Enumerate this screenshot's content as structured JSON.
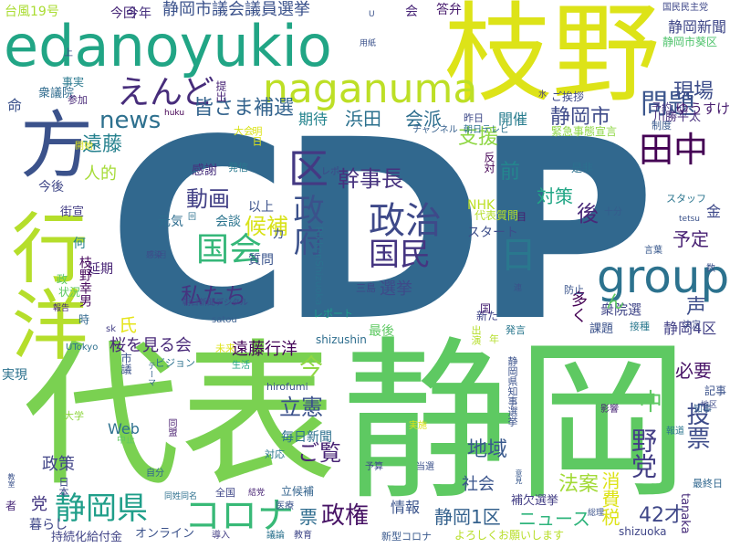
{
  "words": [
    {
      "text": "CDP",
      "color": "#31688e"
    },
    {
      "text": "静岡",
      "color": "#5ec962"
    },
    {
      "text": "代表",
      "color": "#7ad151"
    },
    {
      "text": "枝野",
      "color": "#dde318"
    },
    {
      "text": "edanoyukio",
      "color": "#21a585"
    },
    {
      "text": "行洋",
      "color": "#b5de2b"
    },
    {
      "text": "方",
      "color": "#3b528b"
    },
    {
      "text": "naganuma",
      "color": "#bddf26"
    },
    {
      "text": "group",
      "color": "#2c728e"
    },
    {
      "text": "政治",
      "color": "#3e4989"
    },
    {
      "text": "国会",
      "color": "#35b779"
    },
    {
      "text": "コロナ",
      "color": "#38b977"
    },
    {
      "text": "区",
      "color": "#443983"
    },
    {
      "text": "静岡県",
      "color": "#1f9e89"
    },
    {
      "text": "えんど",
      "color": "#472d7b"
    },
    {
      "text": "田中",
      "color": "#440154"
    },
    {
      "text": "問題",
      "color": "#3a548c"
    },
    {
      "text": "政府",
      "color": "#3b518b"
    },
    {
      "text": "国民",
      "color": "#453581"
    },
    {
      "text": "日",
      "color": "#2a788e"
    },
    {
      "text": "news",
      "color": "#2d708e"
    },
    {
      "text": "現場",
      "color": "#3d4d8a"
    },
    {
      "text": "皆さま補選",
      "color": "#33638d"
    },
    {
      "text": "ゆうすけ",
      "color": "#481d6f"
    },
    {
      "text": "幹事長",
      "color": "#46327e"
    },
    {
      "text": "遠藤",
      "color": "#26818e"
    },
    {
      "text": "動画",
      "color": "#424086"
    },
    {
      "text": "静岡市",
      "color": "#3e4a89"
    },
    {
      "text": "支援",
      "color": "#8fd744"
    },
    {
      "text": "会派",
      "color": "#2e6e8e"
    },
    {
      "text": "浜田",
      "color": "#2c718e"
    },
    {
      "text": "期待",
      "color": "#25848e"
    },
    {
      "text": "開催",
      "color": "#287c8e"
    },
    {
      "text": "前",
      "color": "#24868e"
    },
    {
      "text": "対策",
      "color": "#21a685"
    },
    {
      "text": "川勝平太",
      "color": "#472e7c"
    },
    {
      "text": "静岡新聞",
      "color": "#3f4788"
    },
    {
      "text": "静岡市議会議員選挙",
      "color": "#3b528b"
    },
    {
      "text": "今回",
      "color": "#482878"
    },
    {
      "text": "今年",
      "color": "#46307e"
    },
    {
      "text": "台風19号",
      "color": "#aadc32"
    },
    {
      "text": "会",
      "color": "#482677"
    },
    {
      "text": "答弁",
      "color": "#481c6e"
    },
    {
      "text": "静岡市葵区",
      "color": "#4ec36b"
    },
    {
      "text": "国民民主党",
      "color": "#3f4889"
    },
    {
      "text": "候補",
      "color": "#d8e219"
    },
    {
      "text": "私たち",
      "color": "#46337f"
    },
    {
      "text": "予定",
      "color": "#482173"
    },
    {
      "text": "選挙",
      "color": "#3e4a89"
    },
    {
      "text": "人的",
      "color": "#a5db36"
    },
    {
      "text": "感謝",
      "color": "#472f7d"
    },
    {
      "text": "以上",
      "color": "#3b528b"
    },
    {
      "text": "元気",
      "color": "#2e6d8e"
    },
    {
      "text": "会談",
      "color": "#2b748e"
    },
    {
      "text": "質問",
      "color": "#3a548c"
    },
    {
      "text": "後",
      "color": "#482878"
    },
    {
      "text": "多く",
      "color": "#440154"
    },
    {
      "text": "静岡4区",
      "color": "#424086"
    },
    {
      "text": "衆院選",
      "color": "#404688"
    },
    {
      "text": "課題",
      "color": "#3b528b"
    },
    {
      "text": "声",
      "color": "#3d4e8a"
    },
    {
      "text": "必要",
      "color": "#481467"
    },
    {
      "text": "今",
      "color": "#90d743"
    },
    {
      "text": "桜を見る会",
      "color": "#482878"
    },
    {
      "text": "遠藤行洋",
      "color": "#450559"
    },
    {
      "text": "氏",
      "color": "#e5e419"
    },
    {
      "text": "立憲",
      "color": "#3b518b"
    },
    {
      "text": "ご覧",
      "color": "#482475"
    },
    {
      "text": "中",
      "color": "#5ec962"
    },
    {
      "text": "投票",
      "color": "#3e4c8a"
    },
    {
      "text": "野党",
      "color": "#433e85"
    },
    {
      "text": "毎日新聞",
      "color": "#2d708e"
    },
    {
      "text": "地域",
      "color": "#38588c"
    },
    {
      "text": "政策",
      "color": "#414487"
    },
    {
      "text": "静岡1区",
      "color": "#34618d"
    },
    {
      "text": "ニュース",
      "color": "#2fb47c"
    },
    {
      "text": "42才",
      "color": "#3f4788"
    },
    {
      "text": "法案",
      "color": "#a2da37"
    },
    {
      "text": "社会",
      "color": "#3a548c"
    },
    {
      "text": "党",
      "color": "#453882"
    },
    {
      "text": "政権",
      "color": "#471365"
    },
    {
      "text": "票",
      "color": "#2f6c8e"
    },
    {
      "text": "情報",
      "color": "#3a538b"
    },
    {
      "text": "補欠選挙",
      "color": "#433e85"
    },
    {
      "text": "消費税",
      "color": "#dde318"
    },
    {
      "text": "shizuoka",
      "color": "#404688"
    },
    {
      "text": "暮らし",
      "color": "#3f4788"
    },
    {
      "text": "持続化給付金",
      "color": "#414487"
    },
    {
      "text": "オンライン",
      "color": "#3b528b"
    },
    {
      "text": "新型コロナ",
      "color": "#38588c"
    },
    {
      "text": "よろしくお願いします",
      "color": "#b8de29"
    },
    {
      "text": "tanaka",
      "color": "#472c7a"
    },
    {
      "text": "最終日",
      "color": "#31678e"
    },
    {
      "text": "Web",
      "color": "#2d708e"
    },
    {
      "text": "NHK",
      "color": "#bddf26"
    },
    {
      "text": "スタート",
      "color": "#3d4e8a"
    },
    {
      "text": "shizushin",
      "color": "#2e6e8e"
    },
    {
      "text": "hirofumi",
      "color": "#3a538b"
    },
    {
      "text": "実現",
      "color": "#2c728e"
    },
    {
      "text": "延期",
      "color": "#482576"
    },
    {
      "text": "何",
      "color": "#26828e"
    },
    {
      "text": "枝野幸男",
      "color": "#46085c"
    },
    {
      "text": "衆議院",
      "color": "#2f6b8e"
    },
    {
      "text": "命",
      "color": "#3b528b"
    },
    {
      "text": "今後",
      "color": "#3f4788"
    },
    {
      "text": "街宣",
      "color": "#433d84"
    },
    {
      "text": "状況",
      "color": "#5ec962"
    },
    {
      "text": "事実",
      "color": "#2a788e"
    },
    {
      "text": "参加",
      "color": "#482878"
    },
    {
      "text": "提出",
      "color": "#482576"
    },
    {
      "text": "ご挨拶",
      "color": "#3e4989"
    },
    {
      "text": "予約",
      "color": "#46337f"
    },
    {
      "text": "制度",
      "color": "#38598c"
    },
    {
      "text": "緊急事態宣言",
      "color": "#8fd744"
    },
    {
      "text": "是非",
      "color": "#2c718e"
    },
    {
      "text": "スタッフ",
      "color": "#2b758e"
    },
    {
      "text": "十分",
      "color": "#365c8d"
    },
    {
      "text": "金",
      "color": "#3e4989"
    },
    {
      "text": "代表質問",
      "color": "#b5de2b"
    },
    {
      "text": "目",
      "color": "#481c6e"
    },
    {
      "text": "反対",
      "color": "#440154"
    },
    {
      "text": "チャンネル",
      "color": "#355f8d"
    },
    {
      "text": "朝日テレビ",
      "color": "#2c728e"
    },
    {
      "text": "大会",
      "color": "#d8e219"
    },
    {
      "text": "昨日",
      "color": "#3e4989"
    },
    {
      "text": "明日",
      "color": "#dde318"
    },
    {
      "text": "発信",
      "color": "#2a788e"
    },
    {
      "text": "RikkenShizuoka",
      "color": "#2c718e"
    },
    {
      "text": "三島",
      "color": "#3f4788"
    },
    {
      "text": "レポート",
      "color": "#1f9e89"
    },
    {
      "text": "新た",
      "color": "#404588"
    },
    {
      "text": "最後",
      "color": "#5ec962"
    },
    {
      "text": "出演",
      "color": "#b5de2b"
    },
    {
      "text": "発言",
      "color": "#2a778e"
    },
    {
      "text": "国",
      "color": "#482475"
    },
    {
      "text": "防止",
      "color": "#3a548c"
    },
    {
      "text": "決定",
      "color": "#3e4c8a"
    },
    {
      "text": "接種",
      "color": "#2a788e"
    },
    {
      "text": "言葉",
      "color": "#38588c"
    },
    {
      "text": "大学",
      "color": "#90d743"
    },
    {
      "text": "中止",
      "color": "#5ec962"
    },
    {
      "text": "同盟",
      "color": "#481d6f"
    },
    {
      "text": "ビジョン",
      "color": "#2c718e"
    },
    {
      "text": "生活",
      "color": "#20a386"
    },
    {
      "text": "未来",
      "color": "#dde318"
    },
    {
      "text": "UTokyo",
      "color": "#2d708e"
    },
    {
      "text": "sk",
      "color": "#433e85"
    },
    {
      "text": "市議",
      "color": "#3b528b"
    },
    {
      "text": "テーマ",
      "color": "#33638d"
    },
    {
      "text": "影響",
      "color": "#482475"
    },
    {
      "text": "記事",
      "color": "#3b528b"
    },
    {
      "text": "知事",
      "color": "#35608d"
    },
    {
      "text": "報道",
      "color": "#2b748e"
    },
    {
      "text": "地区",
      "color": "#3e4a89"
    },
    {
      "text": "静岡県知事選挙",
      "color": "#3b528b"
    },
    {
      "text": "実施",
      "color": "#dde318"
    },
    {
      "text": "対応",
      "color": "#2a788e"
    },
    {
      "text": "予算",
      "color": "#3e4a89"
    },
    {
      "text": "当選",
      "color": "#3b518b"
    },
    {
      "text": "自分",
      "color": "#31678e"
    },
    {
      "text": "同姓同名",
      "color": "#2d708e"
    },
    {
      "text": "全国",
      "color": "#3f4788"
    },
    {
      "text": "結党",
      "color": "#482475"
    },
    {
      "text": "立候補",
      "color": "#33638d"
    },
    {
      "text": "医療",
      "color": "#3b528b"
    },
    {
      "text": "議論",
      "color": "#2c728e"
    },
    {
      "text": "教育",
      "color": "#3f4788"
    },
    {
      "text": "導入",
      "color": "#433e85"
    },
    {
      "text": "者",
      "color": "#482878"
    },
    {
      "text": "教室",
      "color": "#3b528b"
    },
    {
      "text": "satou",
      "color": "#365c8d"
    },
    {
      "text": "朝日新聞デジタル",
      "color": "#404688"
    },
    {
      "text": "開始",
      "color": "#dde318"
    },
    {
      "text": "レポ",
      "color": "#3e4989"
    },
    {
      "text": "回",
      "color": "#2c718e"
    },
    {
      "text": "月",
      "color": "#3b528b"
    },
    {
      "text": "huku",
      "color": "#440154"
    },
    {
      "text": "水",
      "color": "#433e85"
    },
    {
      "text": "U",
      "color": "#3b528b"
    },
    {
      "text": "上",
      "color": "#3e4989"
    },
    {
      "text": "総理",
      "color": "#3b528b"
    },
    {
      "text": "用紙",
      "color": "#3b528b"
    },
    {
      "text": "意見",
      "color": "#38588c"
    },
    {
      "text": "時",
      "color": "#31678e"
    },
    {
      "text": "年",
      "color": "#b5de2b"
    },
    {
      "text": "連",
      "color": "#3b528b"
    },
    {
      "text": "感染",
      "color": "#3e4989"
    },
    {
      "text": "報告",
      "color": "#482878"
    },
    {
      "text": "政",
      "color": "#5ec962"
    },
    {
      "text": "数",
      "color": "#3b528b"
    },
    {
      "text": "日本",
      "color": "#3e4989"
    },
    {
      "text": "カ",
      "color": "#3b528b"
    },
    {
      "text": "ん",
      "color": "#5ec962"
    },
    {
      "text": "tetsu",
      "color": "#3b528b"
    }
  ]
}
